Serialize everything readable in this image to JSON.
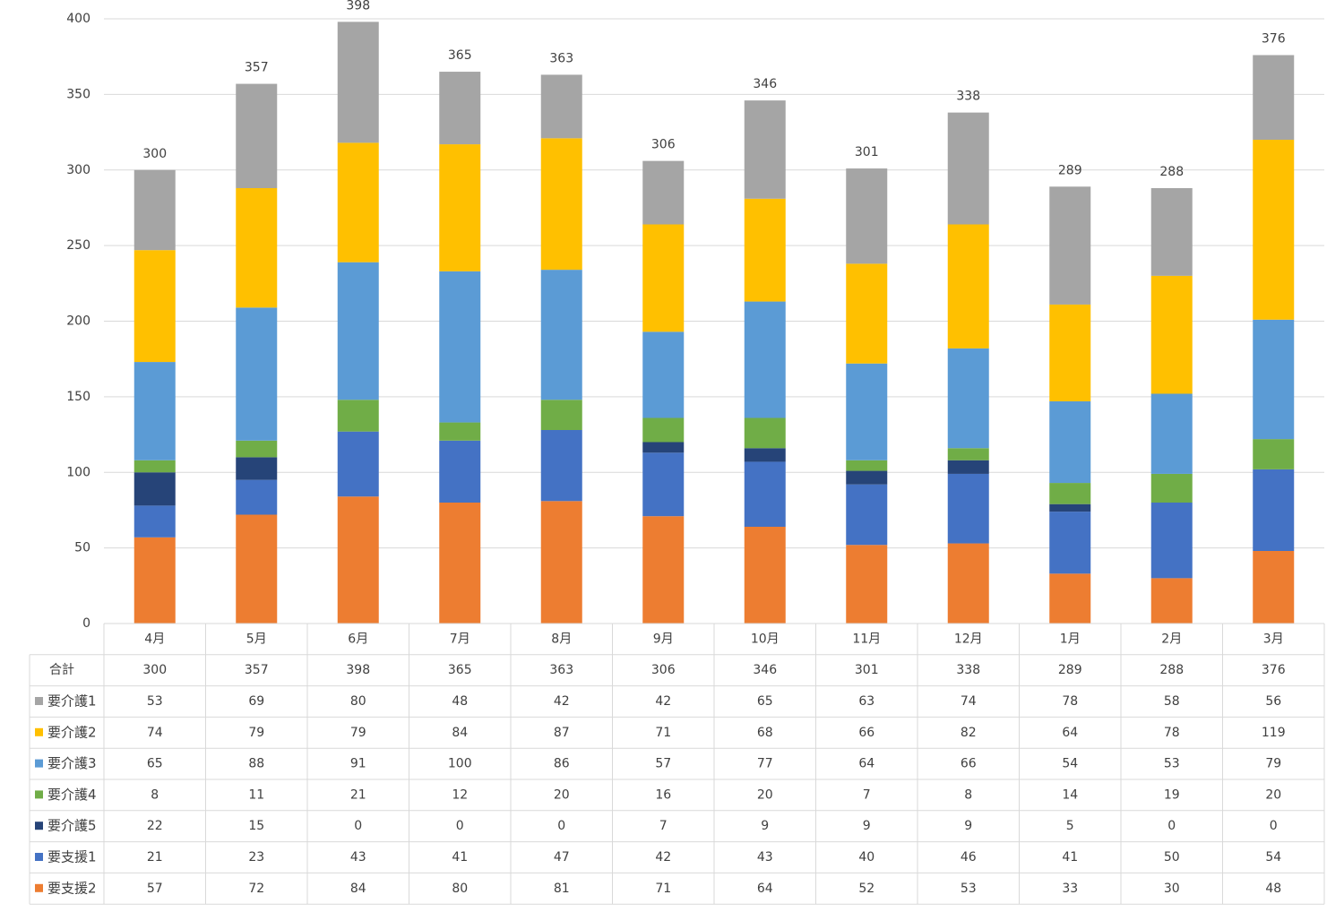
{
  "chart_data": {
    "type": "bar",
    "stacked": true,
    "categories": [
      "4月",
      "5月",
      "6月",
      "7月",
      "8月",
      "9月",
      "10月",
      "11月",
      "12月",
      "1月",
      "2月",
      "3月"
    ],
    "ylim": [
      0,
      400
    ],
    "yticks": [
      0,
      50,
      100,
      150,
      200,
      250,
      300,
      350,
      400
    ],
    "grid": true,
    "legend": "data-table",
    "total_label": "合計",
    "totals": [
      300,
      357,
      398,
      365,
      363,
      306,
      346,
      301,
      338,
      289,
      288,
      376
    ],
    "series": [
      {
        "name": "要支援2",
        "color": "#ED7D31",
        "values": [
          57,
          72,
          84,
          80,
          81,
          71,
          64,
          52,
          53,
          33,
          30,
          48
        ]
      },
      {
        "name": "要支援1",
        "color": "#4472C4",
        "values": [
          21,
          23,
          43,
          41,
          47,
          42,
          43,
          40,
          46,
          41,
          50,
          54
        ]
      },
      {
        "name": "要介護5",
        "color": "#264478",
        "values": [
          22,
          15,
          0,
          0,
          0,
          7,
          9,
          9,
          9,
          5,
          0,
          0
        ]
      },
      {
        "name": "要介護4",
        "color": "#70AD47",
        "values": [
          8,
          11,
          21,
          12,
          20,
          16,
          20,
          7,
          8,
          14,
          19,
          20
        ]
      },
      {
        "name": "要介護3",
        "color": "#5B9BD5",
        "values": [
          65,
          88,
          91,
          100,
          86,
          57,
          77,
          64,
          66,
          54,
          53,
          79
        ]
      },
      {
        "name": "要介護2",
        "color": "#FFC000",
        "values": [
          74,
          79,
          79,
          84,
          87,
          71,
          68,
          66,
          82,
          64,
          78,
          119
        ]
      },
      {
        "name": "要介護1",
        "color": "#A5A5A5",
        "values": [
          53,
          69,
          80,
          48,
          42,
          42,
          65,
          63,
          74,
          78,
          58,
          56
        ]
      }
    ],
    "table_row_order": [
      "要介護1",
      "要介護2",
      "要介護3",
      "要介護4",
      "要介護5",
      "要支援1",
      "要支援2"
    ]
  }
}
